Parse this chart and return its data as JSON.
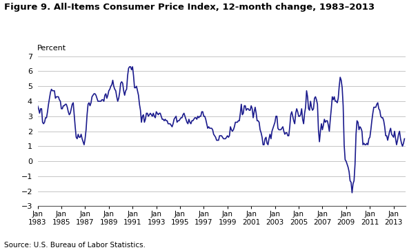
{
  "title": "Figure 9. All-Items Consumer Price Index, 12-month change, 1983–2013",
  "ylabel": "Percent",
  "source": "Source: U.S. Bureau of Labor Statistics.",
  "line_color": "#1a1a8c",
  "line_width": 1.2,
  "bg_color": "#ffffff",
  "ylim": [
    -3,
    7
  ],
  "yticks": [
    -3,
    -2,
    -1,
    0,
    1,
    2,
    3,
    4,
    5,
    6,
    7
  ],
  "x_tick_years": [
    1983,
    1985,
    1987,
    1989,
    1991,
    1993,
    1995,
    1997,
    1999,
    2001,
    2003,
    2005,
    2007,
    2009,
    2011,
    2013
  ],
  "cpi_data": [
    3.7,
    3.5,
    3.2,
    3.5,
    3.5,
    2.6,
    2.5,
    2.6,
    2.9,
    2.9,
    3.3,
    3.8,
    4.2,
    4.6,
    4.8,
    4.7,
    4.7,
    4.7,
    4.2,
    4.3,
    4.3,
    4.3,
    4.1,
    4.0,
    3.5,
    3.5,
    3.7,
    3.7,
    3.8,
    3.8,
    3.6,
    3.3,
    3.1,
    3.2,
    3.5,
    3.8,
    3.9,
    3.1,
    2.3,
    1.6,
    1.5,
    1.8,
    1.6,
    1.6,
    1.8,
    1.5,
    1.3,
    1.1,
    1.5,
    2.1,
    3.1,
    3.8,
    3.9,
    3.7,
    3.9,
    4.3,
    4.4,
    4.5,
    4.5,
    4.4,
    4.2,
    4.0,
    4.0,
    4.0,
    4.0,
    4.1,
    4.1,
    4.0,
    4.4,
    4.5,
    4.2,
    4.4,
    4.7,
    4.8,
    5.0,
    5.1,
    5.4,
    5.0,
    4.8,
    4.7,
    4.3,
    4.0,
    4.2,
    4.6,
    5.2,
    5.3,
    5.2,
    4.7,
    4.4,
    4.7,
    4.8,
    5.7,
    6.2,
    6.3,
    6.3,
    6.1,
    6.3,
    5.7,
    4.9,
    4.9,
    5.0,
    4.7,
    4.4,
    3.8,
    3.4,
    2.6,
    3.0,
    3.1,
    2.6,
    2.8,
    3.2,
    3.2,
    3.0,
    3.1,
    3.2,
    3.1,
    3.0,
    3.2,
    3.0,
    2.9,
    3.3,
    3.2,
    3.1,
    3.2,
    3.2,
    3.0,
    2.8,
    2.8,
    2.7,
    2.8,
    2.7,
    2.7,
    2.5,
    2.5,
    2.5,
    2.4,
    2.3,
    2.5,
    2.8,
    2.9,
    3.0,
    2.6,
    2.7,
    2.7,
    2.8,
    2.9,
    2.9,
    3.1,
    3.2,
    3.0,
    2.8,
    2.6,
    2.5,
    2.8,
    2.6,
    2.5,
    2.7,
    2.7,
    2.8,
    2.9,
    2.9,
    2.8,
    3.0,
    2.9,
    3.0,
    3.0,
    3.3,
    3.3,
    3.0,
    3.0,
    2.8,
    2.5,
    2.2,
    2.3,
    2.2,
    2.2,
    2.2,
    2.1,
    1.8,
    1.7,
    1.6,
    1.4,
    1.4,
    1.4,
    1.7,
    1.7,
    1.7,
    1.6,
    1.5,
    1.5,
    1.5,
    1.6,
    1.7,
    1.6,
    1.7,
    2.3,
    2.1,
    2.0,
    2.1,
    2.3,
    2.6,
    2.6,
    2.6,
    2.7,
    2.7,
    3.2,
    3.8,
    3.1,
    3.2,
    3.7,
    3.7,
    3.4,
    3.5,
    3.5,
    3.4,
    3.4,
    3.7,
    3.5,
    2.9,
    3.3,
    3.6,
    3.2,
    2.7,
    2.7,
    2.6,
    2.1,
    1.9,
    1.6,
    1.1,
    1.1,
    1.5,
    1.6,
    1.2,
    1.1,
    1.5,
    1.8,
    1.5,
    2.0,
    2.2,
    2.4,
    2.6,
    3.0,
    3.0,
    2.2,
    2.1,
    2.1,
    2.1,
    2.2,
    2.3,
    2.0,
    1.8,
    1.9,
    1.9,
    1.7,
    1.7,
    2.3,
    3.1,
    3.3,
    3.0,
    2.7,
    2.5,
    3.2,
    3.5,
    3.3,
    3.0,
    3.0,
    3.1,
    3.5,
    2.8,
    2.5,
    3.2,
    3.6,
    4.7,
    4.3,
    3.5,
    3.4,
    4.0,
    3.6,
    3.4,
    3.5,
    4.2,
    4.3,
    4.1,
    3.8,
    2.1,
    1.3,
    2.0,
    2.5,
    2.1,
    2.4,
    2.8,
    2.6,
    2.7,
    2.7,
    2.4,
    2.0,
    2.8,
    3.5,
    4.3,
    4.1,
    4.3,
    4.0,
    4.0,
    3.9,
    4.2,
    5.0,
    5.6,
    5.4,
    4.9,
    3.7,
    1.1,
    0.1,
    0.0,
    -0.2,
    -0.4,
    -0.7,
    -1.3,
    -1.4,
    -2.1,
    -1.5,
    -1.3,
    -0.2,
    1.8,
    2.7,
    2.6,
    2.1,
    2.3,
    2.2,
    2.0,
    1.1,
    1.2,
    1.1,
    1.1,
    1.2,
    1.1,
    1.5,
    1.6,
    2.1,
    2.7,
    3.2,
    3.6,
    3.6,
    3.6,
    3.8,
    3.9,
    3.5,
    3.4,
    3.0,
    2.9,
    2.9,
    2.7,
    2.3,
    1.7,
    1.7,
    1.4,
    1.7,
    2.0,
    2.2,
    1.8,
    1.7,
    1.6,
    2.0,
    1.5,
    1.1,
    1.4,
    1.8,
    2.0,
    1.5,
    1.2,
    1.0,
    1.2,
    1.5
  ]
}
